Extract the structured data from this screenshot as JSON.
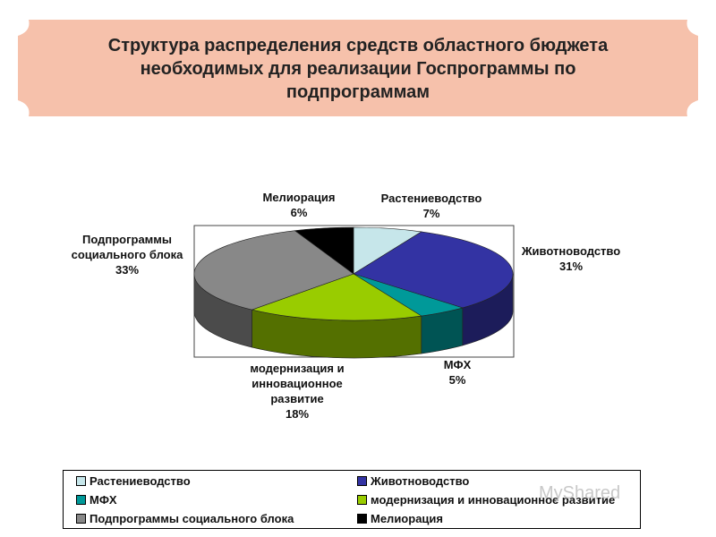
{
  "title_lines": [
    "Структура распределения средств областного бюджета",
    "необходимых для реализации Госпрограммы по",
    "подпрограммам"
  ],
  "colors": {
    "banner": "#f6c1ab",
    "background": "#ffffff"
  },
  "chart_data": {
    "type": "pie",
    "style": "3d-pie",
    "title": "Структура распределения средств областного бюджета необходимых для реализации Госпрограммы по подпрограммам",
    "legend_position": "bottom",
    "slices": [
      {
        "name": "Растениеводство",
        "value": 7,
        "label": "7%",
        "color": "#c6e6ea"
      },
      {
        "name": "Животноводство",
        "value": 31,
        "label": "31%",
        "color": "#3333a3"
      },
      {
        "name": "МФХ",
        "value": 5,
        "label": "5%",
        "color": "#009999"
      },
      {
        "name": "модернизация и инновационное развитие",
        "value": 18,
        "label": "18%",
        "color": "#99cc00"
      },
      {
        "name": "Подпрограммы социального блока",
        "value": 33,
        "label": "33%",
        "color": "#888888"
      },
      {
        "name": "Мелиорация",
        "value": 6,
        "label": "6%",
        "color": "#000000"
      }
    ],
    "data_labels": [
      {
        "lines": [
          "Растениеводство",
          "7%"
        ]
      },
      {
        "lines": [
          "Животноводство",
          "31%"
        ]
      },
      {
        "lines": [
          "МФХ",
          "5%"
        ]
      },
      {
        "lines": [
          "модернизация и",
          "инновационное",
          "развитие",
          "18%"
        ]
      },
      {
        "lines": [
          "Подпрограммы",
          "социального блока",
          "33%"
        ]
      },
      {
        "lines": [
          "Мелиорация",
          "6%"
        ]
      }
    ],
    "legend": [
      "Растениеводство",
      "Животноводство",
      "МФХ",
      "модернизация и инновационное развитие",
      "Подпрограммы социального блока",
      "Мелиорация"
    ]
  },
  "watermark": "MyShared"
}
